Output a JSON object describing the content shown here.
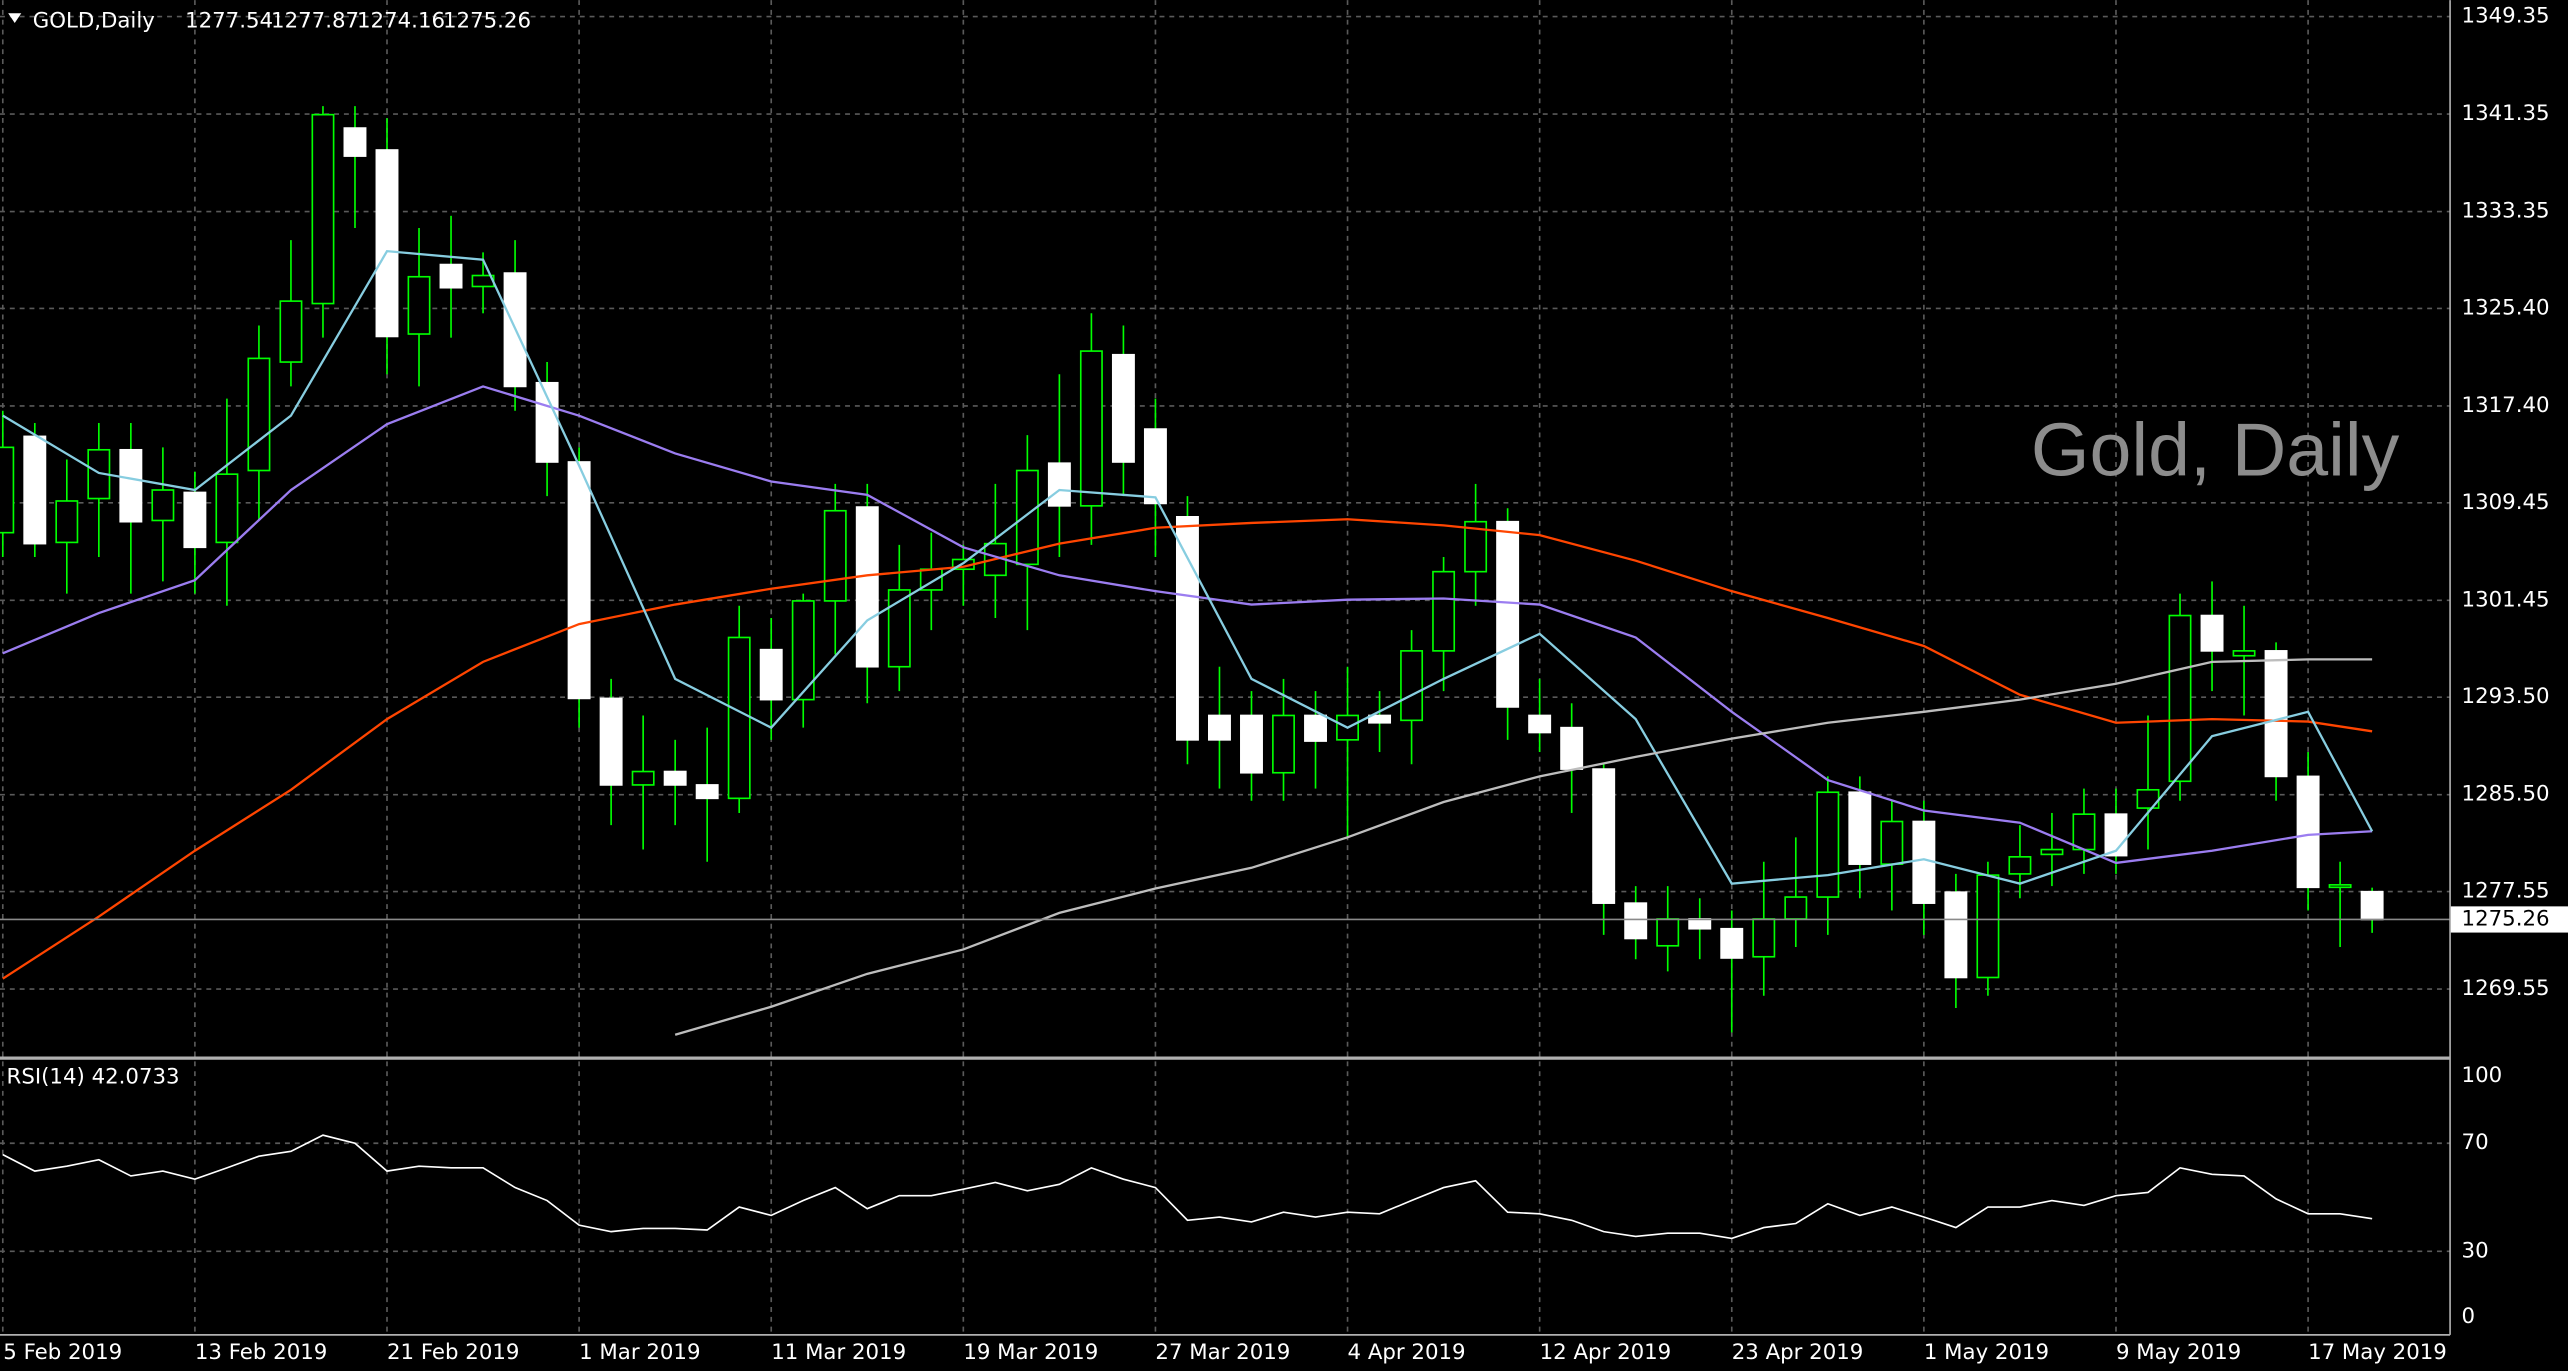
{
  "chart_data": [
    {
      "type": "candlestick",
      "title": "GOLD,Daily",
      "watermark": "Gold, Daily",
      "categories": [
        "5 Feb 2019",
        null,
        null,
        null,
        null,
        null,
        "13 Feb 2019",
        null,
        null,
        null,
        null,
        null,
        "21 Feb 2019",
        null,
        null,
        null,
        null,
        null,
        "1 Mar 2019",
        null,
        null,
        null,
        null,
        null,
        "11 Mar 2019",
        null,
        null,
        null,
        null,
        null,
        "19 Mar 2019",
        null,
        null,
        null,
        null,
        null,
        "27 Mar 2019",
        null,
        null,
        null,
        null,
        null,
        "4 Apr 2019",
        null,
        null,
        null,
        null,
        null,
        "12 Apr 2019",
        null,
        null,
        null,
        null,
        null,
        "23 Apr 2019",
        null,
        null,
        null,
        null,
        null,
        "1 May 2019",
        null,
        null,
        null,
        null,
        null,
        "9 May 2019",
        null,
        null,
        null,
        null,
        null,
        "17 May 2019",
        null,
        null
      ],
      "open": [
        1307,
        1314.9,
        1306.2,
        1309.8,
        1313.8,
        1308,
        1310.3,
        1306.2,
        1312.1,
        1321,
        1325.8,
        1340.2,
        1338.4,
        1323.3,
        1329,
        1327.2,
        1328.3,
        1319.3,
        1312.8,
        1293.4,
        1286.3,
        1287.4,
        1286.3,
        1285.2,
        1297.4,
        1293.3,
        1301.4,
        1309.1,
        1296,
        1302.3,
        1304,
        1303.5,
        1304.4,
        1312.7,
        1309.2,
        1321.6,
        1315.5,
        1308.3,
        1292,
        1292,
        1287.3,
        1292,
        1290,
        1292,
        1291.6,
        1297.3,
        1303.8,
        1307.9,
        1292,
        1291,
        1287.6,
        1276.6,
        1273.1,
        1275.3,
        1274.5,
        1272.2,
        1275.3,
        1277.1,
        1285.7,
        1279.8,
        1283.3,
        1277.5,
        1270.5,
        1279,
        1280.6,
        1281,
        1283.9,
        1284.4,
        1286.6,
        1300.2,
        1296.9,
        1297.3,
        1287,
        1277.9,
        1277.54
      ],
      "high": [
        1317,
        1316,
        1313,
        1316,
        1316,
        1314,
        1312,
        1318,
        1324,
        1331,
        1342,
        1342,
        1341,
        1332,
        1333,
        1330,
        1331,
        1321,
        1314,
        1295,
        1292,
        1290,
        1291,
        1301,
        1300,
        1302,
        1311,
        1311,
        1306,
        1307,
        1306,
        1311,
        1315,
        1320,
        1325,
        1324,
        1318,
        1310,
        1296,
        1294,
        1295,
        1294,
        1296,
        1294,
        1299,
        1305,
        1311,
        1309,
        1295,
        1293,
        1288,
        1278,
        1278,
        1277,
        1276,
        1280,
        1282,
        1287,
        1287,
        1285,
        1285,
        1279,
        1280,
        1283,
        1284,
        1286,
        1286,
        1292,
        1302,
        1303,
        1301,
        1298,
        1289,
        1280,
        1277.87
      ],
      "low": [
        1305,
        1305,
        1302,
        1305,
        1302,
        1303,
        1302,
        1301,
        1308,
        1319,
        1323,
        1332,
        1320,
        1319,
        1323,
        1325,
        1317,
        1310,
        1291,
        1283,
        1281,
        1283,
        1280,
        1284,
        1290,
        1291,
        1297,
        1293,
        1294,
        1299,
        1301,
        1300,
        1299,
        1305,
        1306,
        1310,
        1305,
        1288,
        1286,
        1285,
        1285,
        1286,
        1282,
        1289,
        1288,
        1294,
        1301,
        1290,
        1289,
        1284,
        1274,
        1272,
        1271,
        1272,
        1266,
        1269,
        1273,
        1274,
        1277,
        1276,
        1274,
        1268,
        1269,
        1277,
        1278,
        1279,
        1279,
        1281,
        1285,
        1294,
        1292,
        1285,
        1276,
        1273,
        1274.16
      ],
      "close": [
        1314,
        1306.1,
        1309.6,
        1313.8,
        1307.9,
        1310.5,
        1305.8,
        1311.8,
        1321.3,
        1326,
        1341.3,
        1337.9,
        1323.1,
        1328,
        1327.1,
        1328.1,
        1319,
        1312.8,
        1293.4,
        1286.3,
        1287.4,
        1286.3,
        1285.2,
        1298.4,
        1293.3,
        1301.4,
        1308.8,
        1296,
        1302.3,
        1304,
        1304.8,
        1306.1,
        1312.1,
        1309.2,
        1321.9,
        1312.8,
        1309.4,
        1290,
        1290,
        1287.3,
        1292,
        1289.9,
        1292,
        1291.4,
        1297.3,
        1303.8,
        1307.9,
        1292.7,
        1290.6,
        1287.6,
        1276.6,
        1273.7,
        1275.3,
        1274.5,
        1272.1,
        1275.3,
        1277.1,
        1285.7,
        1279.8,
        1283.3,
        1276.6,
        1270.5,
        1278.9,
        1280.4,
        1281,
        1283.9,
        1280.5,
        1285.9,
        1300.2,
        1297.3,
        1297.3,
        1287,
        1277.9,
        1278.1,
        1275.26
      ],
      "up_color": "#00ff00",
      "down_color": "#ffffff",
      "ylim": [
        1264.02,
        1350.7
      ],
      "yticks": [
        1269.55,
        1277.55,
        {
          "value": 1285.5,
          "label": "1285.50"
        },
        {
          "value": 1293.5,
          "label": "1293.50"
        },
        1301.45,
        1309.45,
        {
          "value": 1317.4,
          "label": "1317.40"
        },
        {
          "value": 1325.4,
          "label": "1325.40"
        },
        1333.35,
        1341.35,
        1349.35
      ],
      "grid": true,
      "series": [
        {
          "color": "#ff4500",
          "x": [
            0,
            3,
            6,
            9,
            12,
            15,
            18,
            21,
            24,
            27,
            30,
            33,
            36,
            39,
            42,
            45,
            48,
            51,
            54,
            57,
            60,
            63,
            66,
            69,
            72,
            74
          ],
          "values": [
            1270.4,
            1275.5,
            1280.9,
            1285.9,
            1291.7,
            1296.4,
            1299.5,
            1301.1,
            1302.4,
            1303.5,
            1304.2,
            1306.1,
            1307.4,
            1307.8,
            1308.1,
            1307.6,
            1306.8,
            1304.7,
            1302.2,
            1300,
            1297.7,
            1293.7,
            1291.4,
            1291.7,
            1291.5,
            1290.7
          ]
        },
        {
          "color": "#9b7df0",
          "x": [
            0,
            3,
            6,
            9,
            12,
            15,
            18,
            21,
            24,
            27,
            30,
            33,
            36,
            39,
            42,
            45,
            48,
            51,
            54,
            57,
            60,
            63,
            66,
            69,
            72,
            74
          ],
          "values": [
            1297.1,
            1300.4,
            1303.1,
            1310.5,
            1315.9,
            1319,
            1316.6,
            1313.5,
            1311.2,
            1310.1,
            1305.8,
            1303.5,
            1302.2,
            1301.1,
            1301.5,
            1301.6,
            1301.1,
            1298.4,
            1292.3,
            1286.7,
            1284.2,
            1283.2,
            1279.9,
            1280.9,
            1282.2,
            1282.5
          ]
        },
        {
          "color": "#87cde0",
          "x": [
            0,
            3,
            6,
            9,
            12,
            15,
            18,
            21,
            24,
            27,
            30,
            33,
            36,
            39,
            42,
            45,
            48,
            51,
            54,
            57,
            60,
            63,
            66,
            69,
            72,
            74
          ],
          "values": [
            1316.6,
            1311.9,
            1310.5,
            1316.6,
            1330.1,
            1329.4,
            1312.5,
            1295,
            1291,
            1299.8,
            1304.5,
            1310.5,
            1309.9,
            1295,
            1291,
            1295,
            1298.7,
            1291.7,
            1278.2,
            1278.9,
            1280.2,
            1278.2,
            1280.9,
            1290.3,
            1292.3,
            1282.5
          ]
        },
        {
          "color": "#bdbdbd",
          "x": [
            21,
            24,
            27,
            30,
            33,
            36,
            39,
            42,
            45,
            48,
            51,
            54,
            57,
            60,
            63,
            66,
            69,
            72,
            74
          ],
          "values": [
            1265.8,
            1268.1,
            1270.8,
            1272.8,
            1275.8,
            1277.8,
            1279.5,
            1282,
            1284.9,
            1287,
            1288.6,
            1290.1,
            1291.4,
            1292.3,
            1293.3,
            1294.6,
            1296.4,
            1296.6,
            1296.6
          ]
        }
      ]
    },
    {
      "type": "line",
      "title": "RSI(14) 42.0733",
      "color": "#ffffff",
      "values": [
        65.8,
        59.7,
        61.5,
        63.9,
        57.9,
        59.7,
        56.7,
        60.9,
        65.2,
        67,
        73,
        70,
        59.7,
        61.5,
        60.9,
        60.9,
        53.6,
        48.8,
        39.7,
        37.3,
        38.5,
        38.5,
        37.9,
        46.4,
        43.3,
        48.8,
        53.6,
        45.8,
        50.6,
        50.6,
        53,
        55.5,
        52.4,
        54.8,
        60.9,
        56.7,
        53.6,
        41.5,
        42.7,
        40.9,
        44.5,
        42.7,
        44.5,
        43.9,
        48.8,
        53.6,
        56.1,
        44.5,
        43.9,
        41.5,
        37.3,
        35.5,
        36.7,
        36.7,
        34.8,
        38.8,
        40.3,
        47.6,
        43.3,
        46.4,
        42.7,
        38.8,
        46.4,
        46.4,
        48.8,
        47,
        50.6,
        51.8,
        60.9,
        58.5,
        57.9,
        49.4,
        43.9,
        43.9,
        42.0733
      ],
      "ylim": [
        0,
        100
      ],
      "yticks": [
        0,
        30,
        70,
        100
      ],
      "grid": true
    }
  ]
}
